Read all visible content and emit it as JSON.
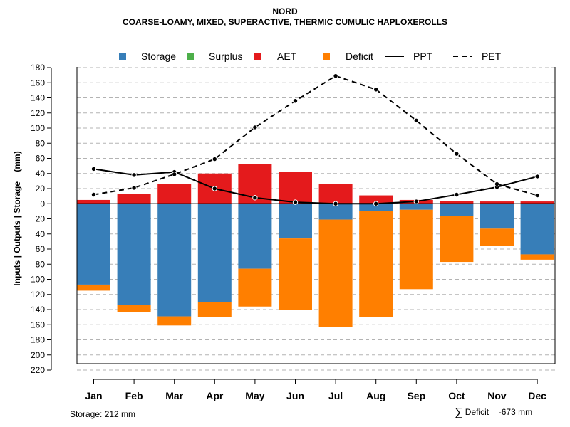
{
  "title": "NORD",
  "subtitle": "COARSE-LOAMY, MIXED, SUPERACTIVE, THERMIC CUMULIC HAPLOXEROLLS",
  "legend": [
    {
      "label": "Storage",
      "color": "#377EB8",
      "kind": "square"
    },
    {
      "label": "Surplus",
      "color": "#4DAF4A",
      "kind": "square"
    },
    {
      "label": "AET",
      "color": "#E41A1C",
      "kind": "square"
    },
    {
      "label": "Deficit",
      "color": "#FF7F00",
      "kind": "square"
    },
    {
      "label": "PPT",
      "color": "#000000",
      "kind": "solid"
    },
    {
      "label": "PET",
      "color": "#000000",
      "kind": "dashed"
    }
  ],
  "footer": {
    "storage": "Storage: 212 mm",
    "deficit_symbol": "∑",
    "deficit": "Deficit = -673 mm"
  },
  "chart_data": {
    "type": "bar",
    "title": "NORD",
    "subtitle": "COARSE-LOAMY, MIXED, SUPERACTIVE, THERMIC CUMULIC HAPLOXEROLLS",
    "ylabel": "Inputs | Outputs | Storage    (mm)",
    "xlabel": "",
    "ylim": [
      -220,
      180
    ],
    "yticks": [
      180,
      160,
      140,
      120,
      100,
      80,
      60,
      40,
      20,
      0,
      -20,
      -40,
      -60,
      -80,
      -100,
      -120,
      -140,
      -160,
      -180,
      -200,
      -220
    ],
    "ytick_labels": [
      "180",
      "160",
      "140",
      "120",
      "100",
      "80",
      "60",
      "40",
      "20",
      "0",
      "20",
      "40",
      "60",
      "80",
      "100",
      "120",
      "140",
      "160",
      "180",
      "200",
      "220"
    ],
    "categories": [
      "Jan",
      "Feb",
      "Mar",
      "Apr",
      "May",
      "Jun",
      "Jul",
      "Aug",
      "Sep",
      "Oct",
      "Nov",
      "Dec"
    ],
    "series": [
      {
        "name": "AET",
        "color": "#E41A1C",
        "direction": "up",
        "values": [
          5,
          13,
          26,
          40,
          52,
          42,
          26,
          11,
          5,
          4,
          3,
          3
        ]
      },
      {
        "name": "Storage",
        "color": "#377EB8",
        "direction": "down",
        "values": [
          107,
          134,
          149,
          130,
          86,
          46,
          21,
          10,
          8,
          16,
          33,
          67
        ]
      },
      {
        "name": "Deficit",
        "color": "#FF7F00",
        "direction": "down",
        "values": [
          8,
          9,
          12,
          20,
          50,
          94,
          142,
          140,
          105,
          61,
          23,
          7
        ]
      },
      {
        "name": "Surplus",
        "color": "#4DAF4A",
        "direction": "up",
        "values": [
          0,
          0,
          0,
          0,
          0,
          0,
          0,
          0,
          0,
          0,
          0,
          0
        ]
      },
      {
        "name": "PPT",
        "type": "line",
        "style": "solid",
        "color": "#000000",
        "values": [
          46,
          38,
          42,
          20,
          8,
          2,
          0,
          0,
          3,
          12,
          22,
          36
        ]
      },
      {
        "name": "PET",
        "type": "line",
        "style": "dashed",
        "color": "#000000",
        "values": [
          12,
          21,
          39,
          59,
          101,
          136,
          169,
          151,
          110,
          66,
          26,
          11
        ]
      }
    ],
    "grid": true,
    "legend_position": "top"
  }
}
